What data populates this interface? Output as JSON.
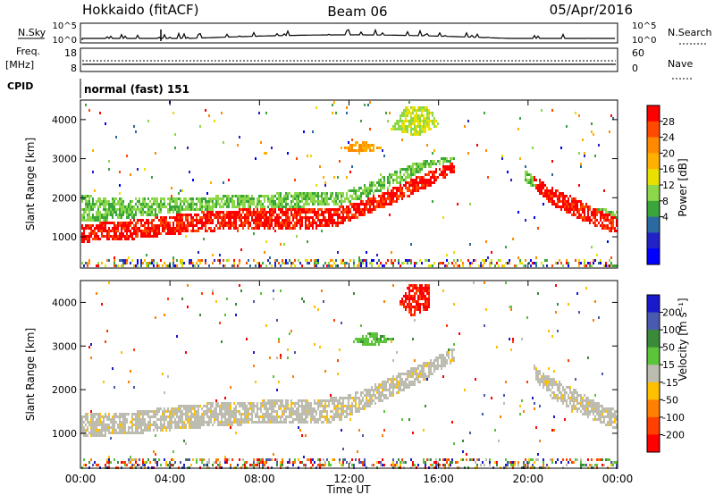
{
  "header": {
    "station": "Hokkaido (fitACF)",
    "beam": "Beam 06",
    "date": "05/Apr/2016"
  },
  "noise_panel": {
    "left_label": "N.Sky",
    "right_label": "N.Search",
    "left_ticks": [
      "10^5",
      "10^0"
    ],
    "right_ticks": [
      "10^5",
      "10^0"
    ]
  },
  "freq_panel": {
    "left_label_line1": "Freq.",
    "left_label_line2": "[MHz]",
    "left_ticks": [
      "18",
      "8"
    ],
    "right_label": "Nave",
    "right_ticks": [
      "60",
      "0"
    ]
  },
  "cpid": {
    "label": "CPID",
    "mode": "normal (fast) 151"
  },
  "x_axis": {
    "label": "Time UT",
    "ticks": [
      "00:00",
      "04:00",
      "08:00",
      "12:00",
      "16:00",
      "20:00",
      "00:00"
    ]
  },
  "chart_data": [
    {
      "type": "heatmap",
      "title": "",
      "xlabel": "Time UT",
      "ylabel": "Slant Range [km]",
      "xlim": [
        0,
        24
      ],
      "ylim": [
        200,
        4500
      ],
      "yticks": [
        1000,
        2000,
        3000,
        4000
      ],
      "colorbar": {
        "label": "Power [dB]",
        "ticks": [
          "28",
          "24",
          "20",
          "16",
          "12",
          "8",
          "4"
        ],
        "colors": [
          "#ff0000",
          "#ff4a00",
          "#ff8a00",
          "#ffb000",
          "#e8e000",
          "#8dd84a",
          "#3aa53a",
          "#2a6aa0",
          "#2222c8",
          "#0000ff"
        ]
      },
      "regions": [
        {
          "name": "main echo band",
          "value_db": 28,
          "points": [
            [
              0.0,
              900
            ],
            [
              2.0,
              950
            ],
            [
              5.0,
              1150
            ],
            [
              8.0,
              1250
            ],
            [
              10.5,
              1250
            ],
            [
              11.5,
              1300
            ],
            [
              12.5,
              1550
            ],
            [
              14.0,
              1900
            ],
            [
              15.5,
              2300
            ],
            [
              16.7,
              2700
            ],
            [
              16.7,
              2950
            ],
            [
              15.5,
              2700
            ],
            [
              14.0,
              2300
            ],
            [
              12.5,
              1950
            ],
            [
              11.5,
              1800
            ],
            [
              10.0,
              1750
            ],
            [
              7.5,
              1750
            ],
            [
              5.0,
              1650
            ],
            [
              2.0,
              1450
            ],
            [
              0.0,
              1350
            ]
          ]
        },
        {
          "name": "upper green fringe",
          "value_db": 12,
          "points": [
            [
              0.0,
              1400
            ],
            [
              2.0,
              1500
            ],
            [
              5.0,
              1700
            ],
            [
              8.0,
              1800
            ],
            [
              10.0,
              1800
            ],
            [
              11.5,
              1850
            ],
            [
              12.5,
              2000
            ],
            [
              14.0,
              2350
            ],
            [
              15.5,
              2750
            ],
            [
              16.7,
              3000
            ],
            [
              16.7,
              3100
            ],
            [
              15.0,
              2950
            ],
            [
              13.0,
              2450
            ],
            [
              11.5,
              2150
            ],
            [
              9.0,
              2150
            ],
            [
              5.0,
              2050
            ],
            [
              2.0,
              2000
            ],
            [
              0.0,
              2100
            ]
          ]
        },
        {
          "name": "evening red band",
          "value_db": 28,
          "points": [
            [
              20.2,
              2600
            ],
            [
              21.0,
              2300
            ],
            [
              22.0,
              2050
            ],
            [
              23.0,
              1750
            ],
            [
              24.0,
              1500
            ],
            [
              24.0,
              1100
            ],
            [
              23.0,
              1300
            ],
            [
              22.0,
              1550
            ],
            [
              21.0,
              1850
            ],
            [
              20.3,
              2250
            ]
          ]
        },
        {
          "name": "evening green band",
          "value_db": 12,
          "points": [
            [
              19.8,
              2750
            ],
            [
              20.5,
              2450
            ],
            [
              21.5,
              2100
            ],
            [
              22.5,
              1800
            ],
            [
              24.0,
              1700
            ],
            [
              24.0,
              1450
            ],
            [
              22.5,
              1500
            ],
            [
              21.5,
              1750
            ],
            [
              20.5,
              2150
            ],
            [
              19.8,
              2450
            ]
          ]
        },
        {
          "name": "far range patches",
          "value_db": 20,
          "points": [
            [
              11.5,
              3300
            ],
            [
              12.5,
              3500
            ],
            [
              13.5,
              3300
            ],
            [
              12.5,
              3150
            ]
          ]
        },
        {
          "name": "cusp echoes",
          "value_db": 16,
          "points": [
            [
              13.8,
              3800
            ],
            [
              14.5,
              4400
            ],
            [
              15.5,
              4400
            ],
            [
              16.0,
              3900
            ],
            [
              15.0,
              3600
            ]
          ]
        }
      ]
    },
    {
      "type": "heatmap",
      "title": "",
      "xlabel": "Time UT",
      "ylabel": "Slant Range [km]",
      "xlim": [
        0,
        24
      ],
      "ylim": [
        200,
        4500
      ],
      "yticks": [
        1000,
        2000,
        3000,
        4000
      ],
      "colorbar": {
        "label": "Velocity [m s⁻¹]",
        "ticks": [
          "200",
          "100",
          "50",
          "15",
          "-15",
          "-50",
          "-100",
          "-200"
        ],
        "colors": [
          "#1a1acc",
          "#4a5ab0",
          "#3a8a3a",
          "#5bc43a",
          "#bcbcb0",
          "#ffc000",
          "#ff8000",
          "#ff4000",
          "#ff0000"
        ]
      },
      "regions": [
        {
          "name": "ground scatter band",
          "value_ms": 0,
          "points": [
            [
              0.0,
              950
            ],
            [
              2.0,
              1000
            ],
            [
              5.0,
              1150
            ],
            [
              8.0,
              1250
            ],
            [
              10.5,
              1250
            ],
            [
              11.5,
              1300
            ],
            [
              12.5,
              1550
            ],
            [
              14.0,
              1900
            ],
            [
              15.5,
              2300
            ],
            [
              16.7,
              2700
            ],
            [
              16.7,
              3000
            ],
            [
              15.5,
              2700
            ],
            [
              14.0,
              2350
            ],
            [
              12.5,
              2000
            ],
            [
              11.5,
              1850
            ],
            [
              9.0,
              1800
            ],
            [
              5.0,
              1700
            ],
            [
              2.0,
              1500
            ],
            [
              0.0,
              1500
            ]
          ]
        },
        {
          "name": "evening ground scatter",
          "value_ms": 0,
          "points": [
            [
              20.2,
              2600
            ],
            [
              21.0,
              2300
            ],
            [
              22.0,
              2050
            ],
            [
              23.0,
              1750
            ],
            [
              24.0,
              1550
            ],
            [
              24.0,
              1100
            ],
            [
              23.0,
              1300
            ],
            [
              22.0,
              1550
            ],
            [
              21.0,
              1850
            ],
            [
              20.3,
              2250
            ]
          ]
        },
        {
          "name": "green ionospheric patch",
          "value_ms": 40,
          "points": [
            [
              12.0,
              3150
            ],
            [
              13.0,
              3350
            ],
            [
              14.0,
              3200
            ],
            [
              13.0,
              3000
            ]
          ]
        },
        {
          "name": "red cusp patch",
          "value_ms": -200,
          "points": [
            [
              14.2,
              4000
            ],
            [
              14.6,
              4450
            ],
            [
              15.6,
              4450
            ],
            [
              15.6,
              3900
            ],
            [
              14.8,
              3700
            ]
          ]
        }
      ]
    }
  ]
}
